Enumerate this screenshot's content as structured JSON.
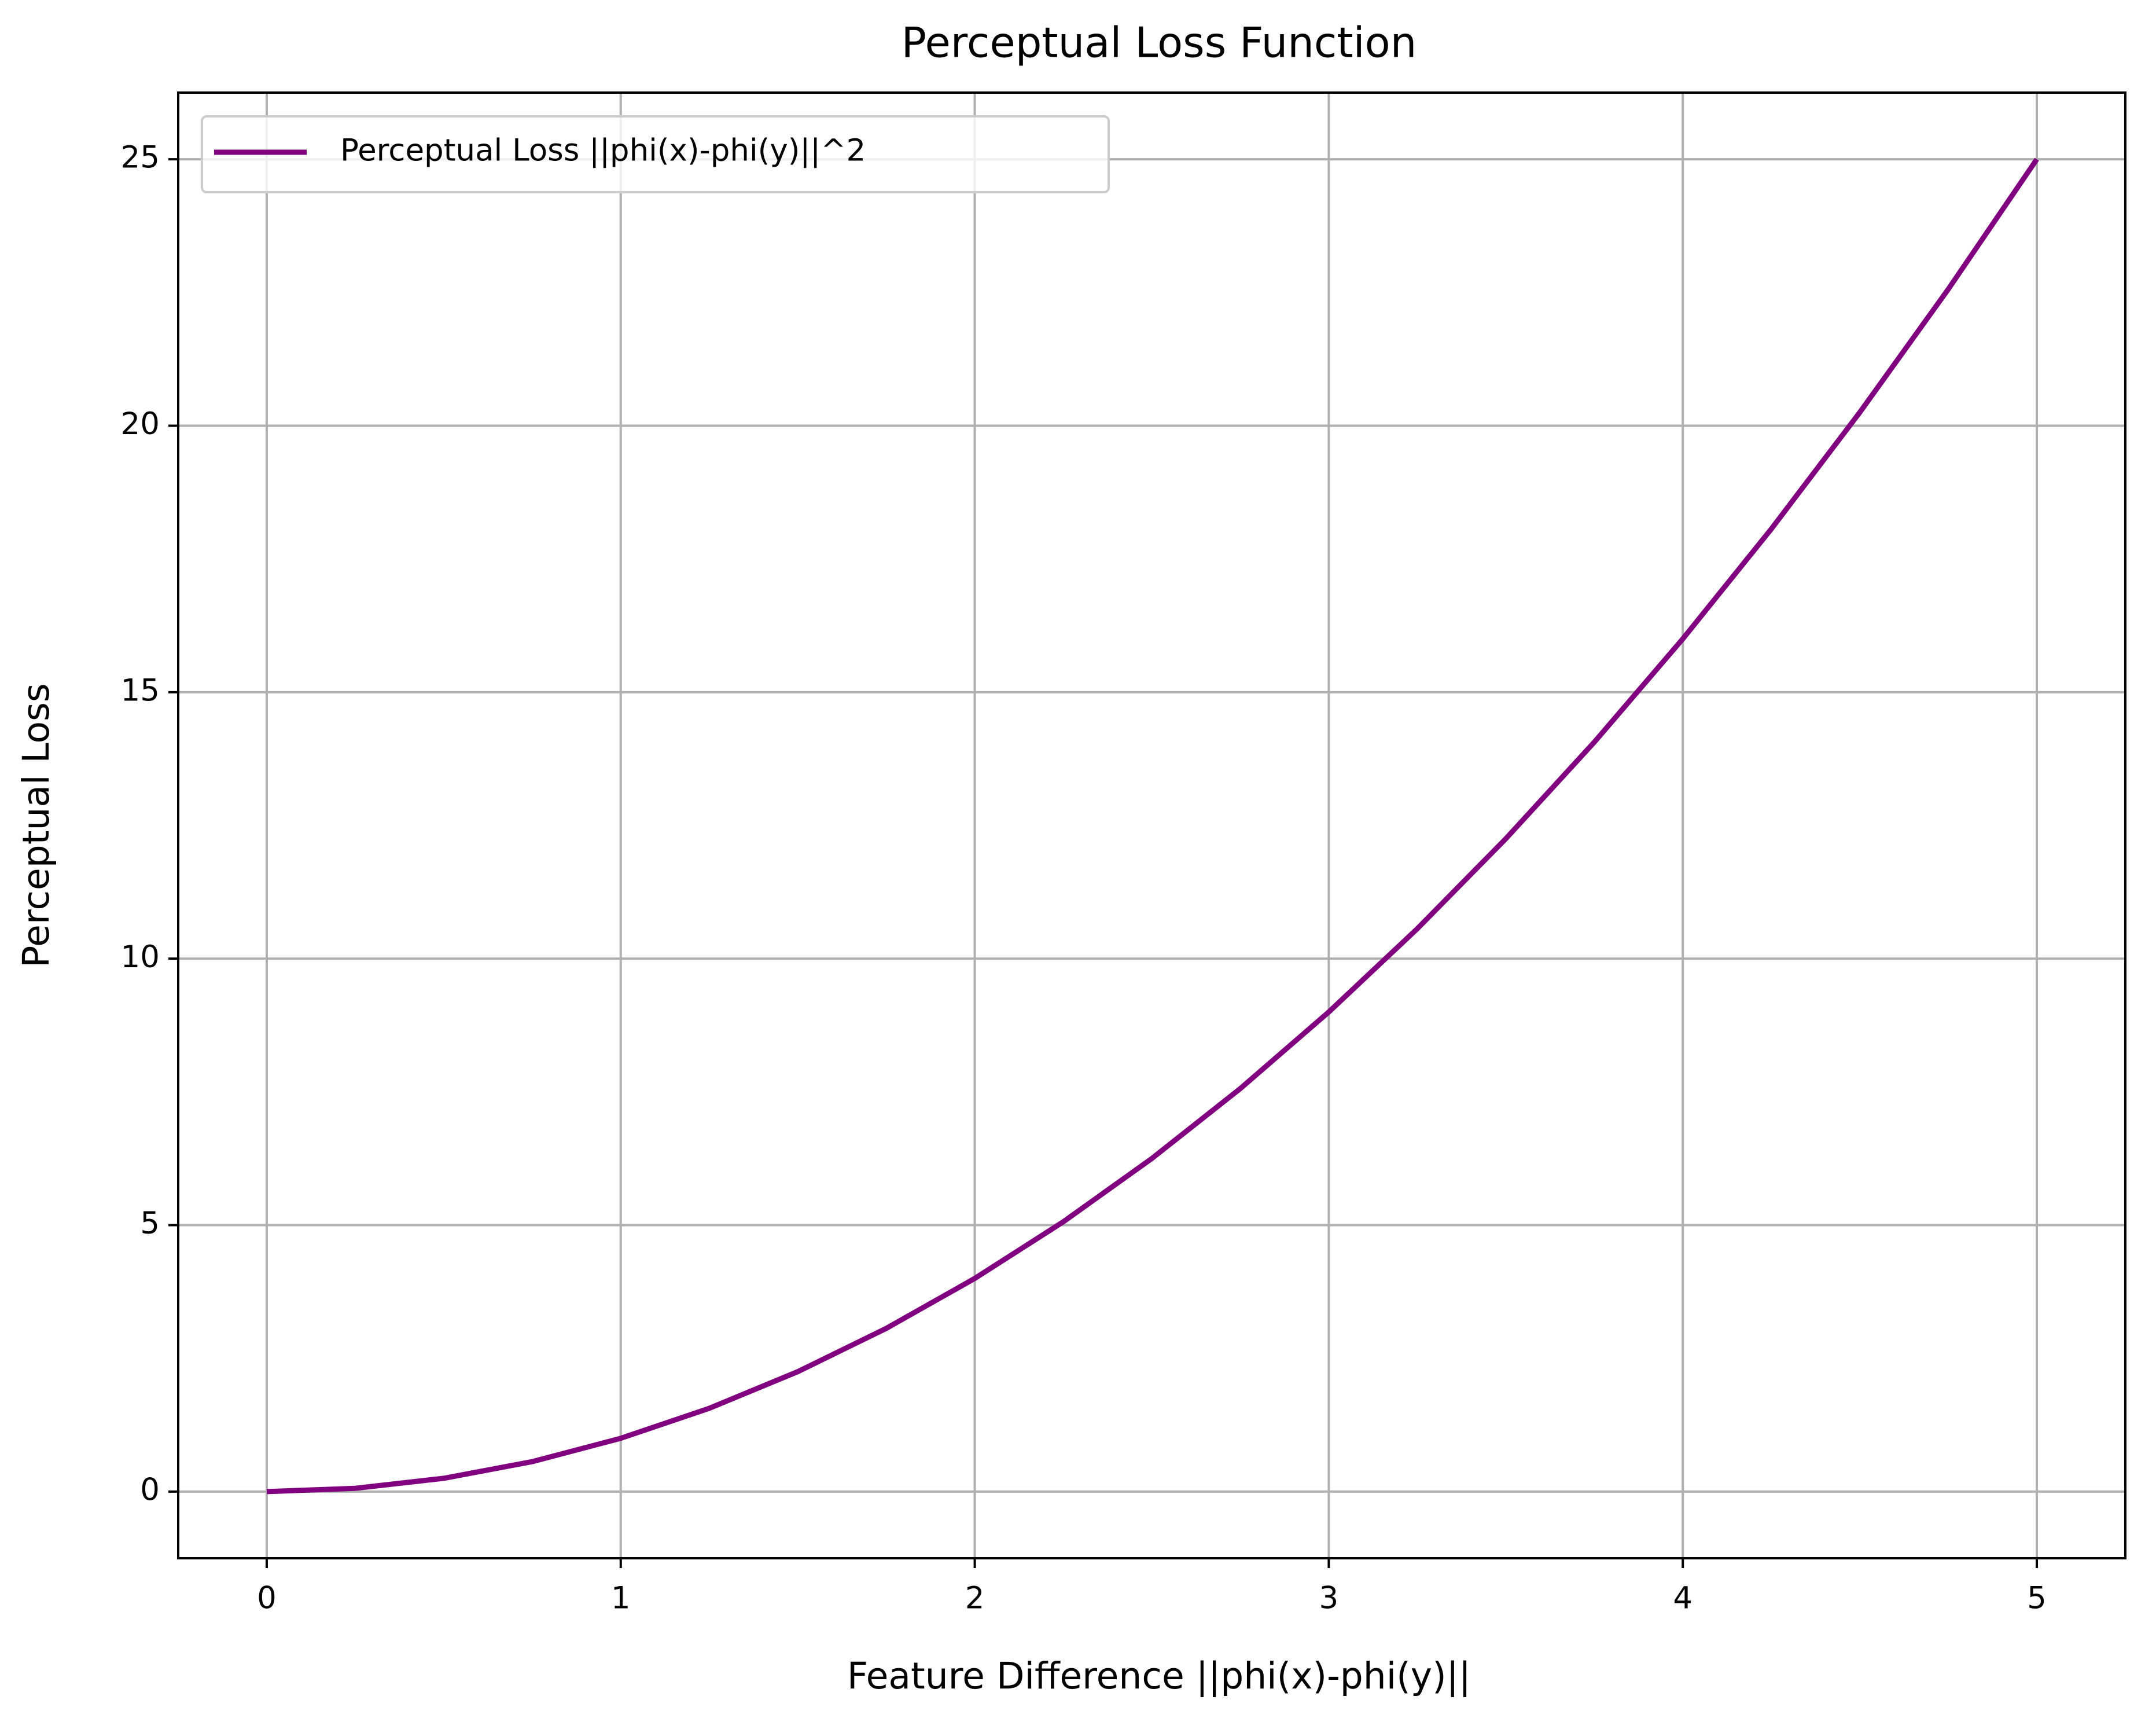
{
  "chart_data": {
    "type": "line",
    "title": "Perceptual Loss Function",
    "xlabel": "Feature Difference ||phi(x)-phi(y)||",
    "ylabel": "Perceptual Loss",
    "x": [
      0,
      0.25,
      0.5,
      0.75,
      1,
      1.25,
      1.5,
      1.75,
      2,
      2.25,
      2.5,
      2.75,
      3,
      3.25,
      3.5,
      3.75,
      4,
      4.25,
      4.5,
      4.75,
      5
    ],
    "series": [
      {
        "name": "Perceptual Loss ||phi(x)-phi(y)||^2",
        "color": "#800080",
        "values": [
          0,
          0.0625,
          0.25,
          0.5625,
          1,
          1.5625,
          2.25,
          3.0625,
          4,
          5.0625,
          6.25,
          7.5625,
          9,
          10.5625,
          12.25,
          14.0625,
          16,
          18.0625,
          20.25,
          22.5625,
          25
        ]
      }
    ],
    "xlim": [
      -0.25,
      5.25
    ],
    "ylim": [
      -1.25,
      26.25
    ],
    "xticks": [
      0,
      1,
      2,
      3,
      4,
      5
    ],
    "yticks": [
      0,
      5,
      10,
      15,
      20,
      25
    ],
    "grid": true,
    "legend": "upper-left"
  }
}
